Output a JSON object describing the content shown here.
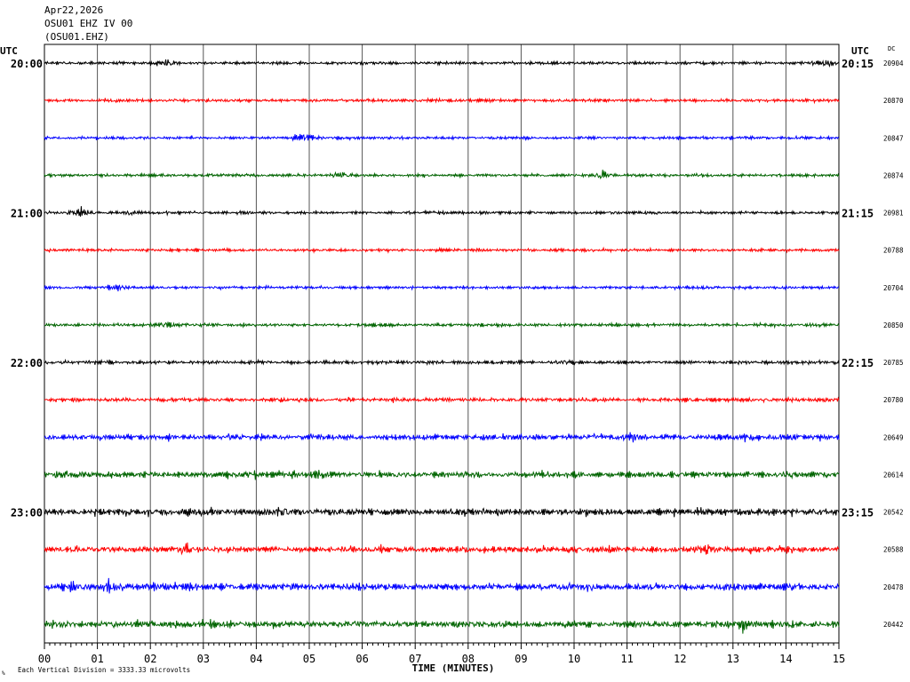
{
  "header": {
    "date": "Apr22,2026",
    "station_line": "OSU01 EHZ IV 00",
    "channel_line": "(OSU01.EHZ)"
  },
  "left_axis_label": "UTC",
  "right_axis_label": "UTC",
  "dc_label": "DC",
  "footer": {
    "scale_note": "Each Vertical Division = 3333.33 microvolts",
    "corner_mark": "%"
  },
  "chart_data": {
    "type": "line",
    "title": "",
    "xlabel": "TIME (MINUTES)",
    "ylabel": "",
    "xlim": [
      0,
      15
    ],
    "x_ticks": [
      "00",
      "01",
      "02",
      "03",
      "04",
      "05",
      "06",
      "07",
      "08",
      "09",
      "10",
      "11",
      "12",
      "13",
      "14",
      "15"
    ],
    "trace_colors": [
      "#000000",
      "#ff0000",
      "#0000ff",
      "#006400"
    ],
    "left_time_labels": [
      {
        "row": 0,
        "text": "20:00"
      },
      {
        "row": 4,
        "text": "21:00"
      },
      {
        "row": 8,
        "text": "22:00"
      },
      {
        "row": 12,
        "text": "23:00"
      }
    ],
    "right_time_labels": [
      {
        "row": 0,
        "text": "20:15"
      },
      {
        "row": 4,
        "text": "21:15"
      },
      {
        "row": 8,
        "text": "22:15"
      },
      {
        "row": 12,
        "text": "23:15"
      }
    ],
    "rows": [
      {
        "color": "#000000",
        "dc": "20904",
        "noise": 0.1,
        "events": [
          {
            "minute": 2.3,
            "amp": 0.28
          },
          {
            "minute": 14.8,
            "amp": 0.32
          }
        ]
      },
      {
        "color": "#ff0000",
        "dc": "20870",
        "noise": 0.11,
        "events": []
      },
      {
        "color": "#0000ff",
        "dc": "20847",
        "noise": 0.1,
        "events": [
          {
            "minute": 4.9,
            "amp": 0.35
          }
        ]
      },
      {
        "color": "#006400",
        "dc": "20874",
        "noise": 0.1,
        "events": [
          {
            "minute": 5.6,
            "amp": 0.22
          },
          {
            "minute": 10.5,
            "amp": 0.25
          }
        ]
      },
      {
        "color": "#000000",
        "dc": "20981",
        "noise": 0.1,
        "events": [
          {
            "minute": 0.7,
            "amp": 0.45
          },
          {
            "minute": 1.6,
            "amp": 0.22
          }
        ]
      },
      {
        "color": "#ff0000",
        "dc": "20788",
        "noise": 0.1,
        "events": []
      },
      {
        "color": "#0000ff",
        "dc": "20704",
        "noise": 0.1,
        "events": [
          {
            "minute": 1.4,
            "amp": 0.28
          }
        ]
      },
      {
        "color": "#006400",
        "dc": "20850",
        "noise": 0.11,
        "events": [
          {
            "minute": 2.3,
            "amp": 0.2
          }
        ]
      },
      {
        "color": "#000000",
        "dc": "20785",
        "noise": 0.12,
        "events": [
          {
            "minute": 9.8,
            "amp": 0.22
          }
        ]
      },
      {
        "color": "#ff0000",
        "dc": "20780",
        "noise": 0.14,
        "events": []
      },
      {
        "color": "#0000ff",
        "dc": "20649",
        "noise": 0.2,
        "events": [
          {
            "minute": 11.1,
            "amp": 0.3
          }
        ]
      },
      {
        "color": "#006400",
        "dc": "20614",
        "noise": 0.22,
        "events": [
          {
            "minute": 5.2,
            "amp": 0.25
          }
        ]
      },
      {
        "color": "#000000",
        "dc": "20542",
        "noise": 0.24,
        "events": [
          {
            "minute": 4.5,
            "amp": 0.28
          }
        ]
      },
      {
        "color": "#ff0000",
        "dc": "20588",
        "noise": 0.22,
        "events": [
          {
            "minute": 2.6,
            "amp": 0.3
          },
          {
            "minute": 12.5,
            "amp": 0.28
          }
        ]
      },
      {
        "color": "#0000ff",
        "dc": "20478",
        "noise": 0.24,
        "events": [
          {
            "minute": 0.5,
            "amp": 0.32
          },
          {
            "minute": 1.2,
            "amp": 0.28
          }
        ]
      },
      {
        "color": "#006400",
        "dc": "20442",
        "noise": 0.24,
        "events": [
          {
            "minute": 13.2,
            "amp": 0.3
          }
        ]
      }
    ]
  }
}
